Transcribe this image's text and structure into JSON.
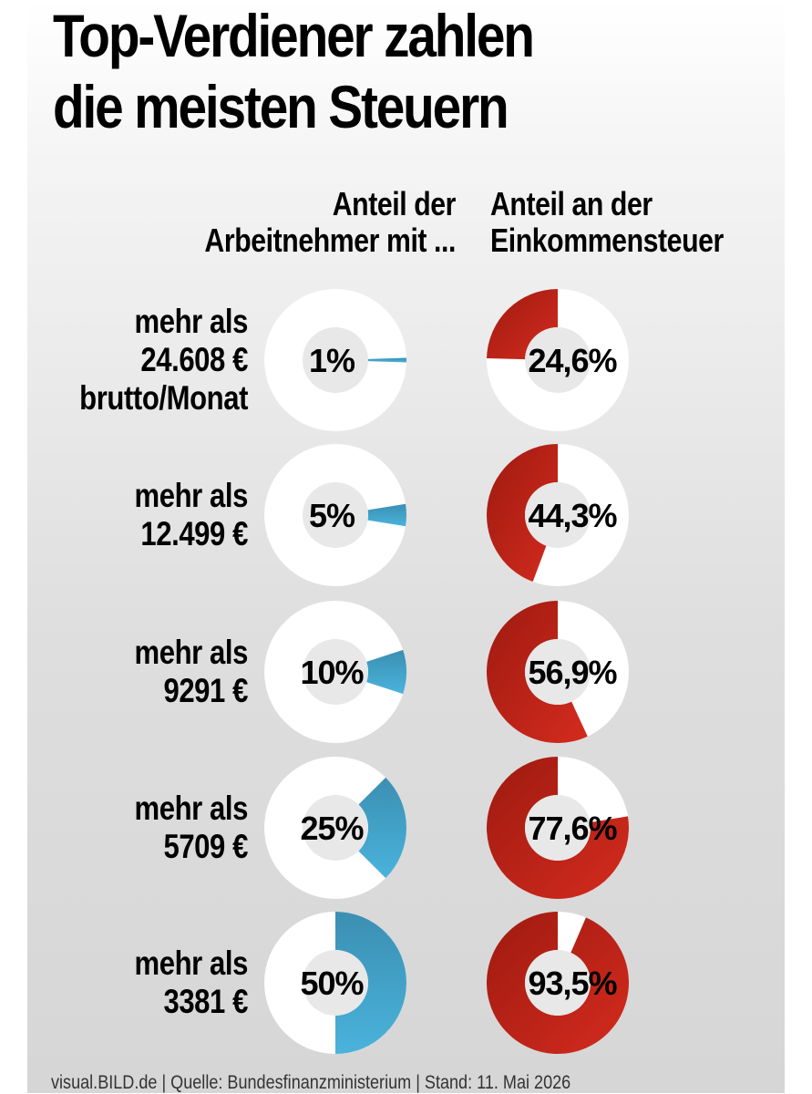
{
  "title": {
    "line1": "Top-Verdiener zahlen",
    "line2": "die meisten Steuern"
  },
  "column_headers": {
    "left": [
      "Anteil der",
      "Arbeitnehmer mit ..."
    ],
    "right": [
      "Anteil an der",
      "Einkommensteuer"
    ]
  },
  "rows": [
    {
      "label_lines": [
        "mehr als",
        "24.608 €",
        "brutto/Monat"
      ],
      "workers_label": "1%",
      "tax_label": "24,6%"
    },
    {
      "label_lines": [
        "mehr als",
        "12.499 €"
      ],
      "workers_label": "5%",
      "tax_label": "44,3%"
    },
    {
      "label_lines": [
        "mehr als",
        "9291 €"
      ],
      "workers_label": "10%",
      "tax_label": "56,9%"
    },
    {
      "label_lines": [
        "mehr als",
        "5709 €"
      ],
      "workers_label": "25%",
      "tax_label": "77,6%"
    },
    {
      "label_lines": [
        "mehr als",
        "3381 €"
      ],
      "workers_label": "50%",
      "tax_label": "93,5%"
    }
  ],
  "chart_data": {
    "type": "pie",
    "categories": [
      "mehr als 24.608 € brutto/Monat",
      "mehr als 12.499 €",
      "mehr als 9291 €",
      "mehr als 5709 €",
      "mehr als 3381 €"
    ],
    "series": [
      {
        "name": "Anteil der Arbeitnehmer mit ...",
        "values": [
          1,
          5,
          10,
          25,
          50
        ],
        "unit": "%"
      },
      {
        "name": "Anteil an der Einkommensteuer",
        "values": [
          24.6,
          44.3,
          56.9,
          77.6,
          93.5
        ],
        "unit": "%"
      }
    ]
  },
  "colors": {
    "workers": "#4ab3dc",
    "tax": "#d42b1e",
    "donut_bg": "#ffffff",
    "donut_hole": "#e8e8e8"
  },
  "footer": "visual.BILD.de | Quelle: Bundesfinanzministerium | Stand: 11. Mai 2026"
}
